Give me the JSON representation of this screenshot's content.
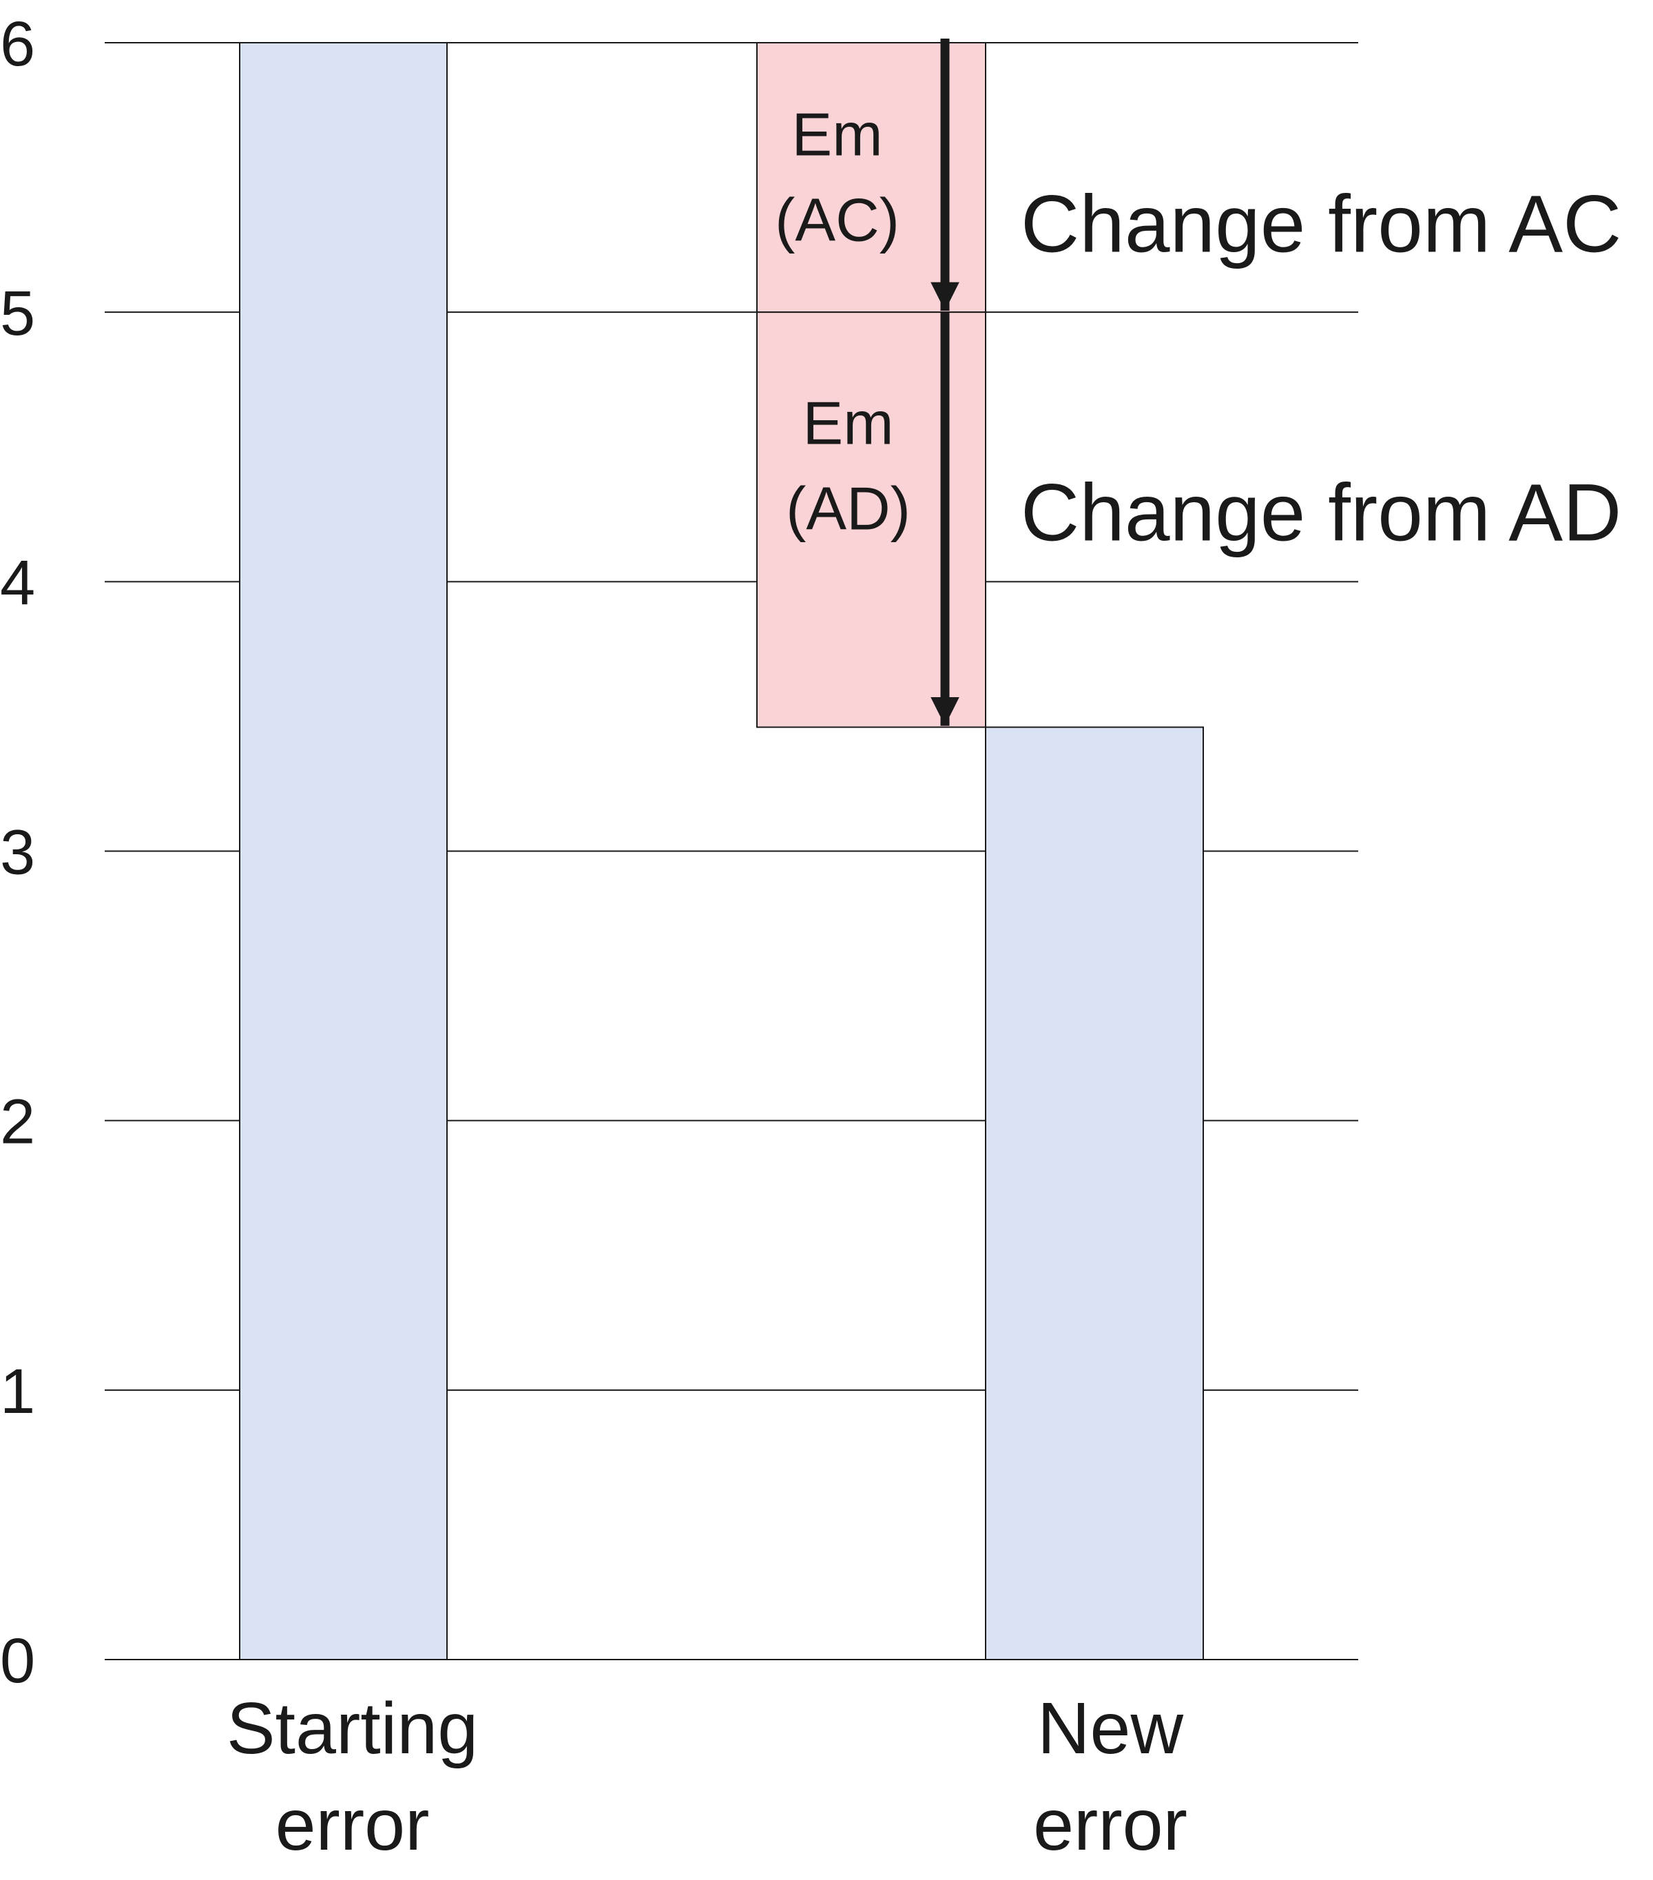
{
  "chart_data": {
    "type": "bar",
    "title": "",
    "xlabel": "",
    "ylabel": "",
    "ylim": [
      0,
      6
    ],
    "yticks": [
      "0",
      "1",
      "2",
      "3",
      "4",
      "5",
      "6"
    ],
    "grid": true,
    "legend": "none",
    "categories": [
      {
        "line1": "Starting",
        "line2": "error"
      },
      {
        "line1": "New",
        "line2": "error"
      }
    ],
    "values": [
      6,
      3.46
    ],
    "waterfall": [
      {
        "label_line1": "Em",
        "label_line2": "(AC)",
        "from": 6,
        "to": 5,
        "annotation": "Change from AC"
      },
      {
        "label_line1": "Em",
        "label_line2": "(AD)",
        "from": 5,
        "to": 3.46,
        "annotation": "Change from AD"
      }
    ],
    "colors": {
      "bar": "#dae3f3",
      "change": "#f9d3d6",
      "arrow": "#1a1a1a",
      "grid": "#1a1a1a"
    }
  }
}
